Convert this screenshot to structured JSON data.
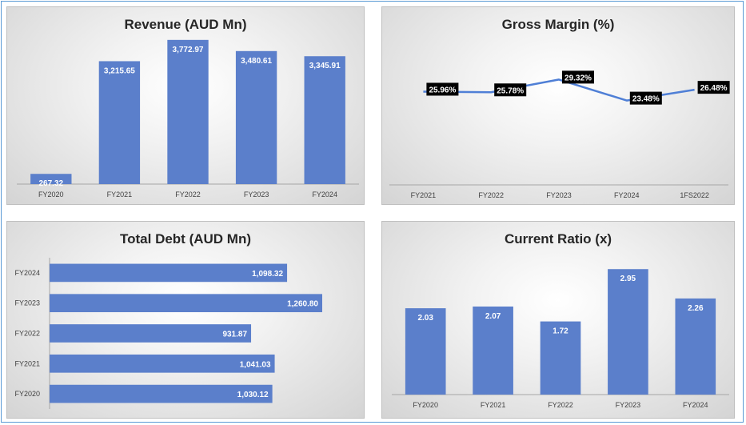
{
  "chart_data": [
    {
      "id": "revenue",
      "type": "bar",
      "title": "Revenue (AUD Mn)",
      "categories": [
        "FY2020",
        "FY2021",
        "FY2022",
        "FY2023",
        "FY2024"
      ],
      "values": [
        267.32,
        3215.65,
        3772.97,
        3480.61,
        3345.91
      ],
      "value_labels": [
        "267.32",
        "3,215.65",
        "3,772.97",
        "3,480.61",
        "3,345.91"
      ],
      "ylim": [
        0,
        4000
      ],
      "color": "#5b7fcb",
      "grid": false
    },
    {
      "id": "gross_margin",
      "type": "line",
      "title": "Gross Margin (%)",
      "categories": [
        "FY2021",
        "FY2022",
        "FY2023",
        "FY2024",
        "1FS2022"
      ],
      "values": [
        25.96,
        25.78,
        29.32,
        23.48,
        26.48
      ],
      "value_labels": [
        "25.96%",
        "25.78%",
        "29.32%",
        "23.48%",
        "26.48%"
      ],
      "ylim": [
        0,
        45
      ],
      "color": "#4f7fd6",
      "grid": false
    },
    {
      "id": "total_debt",
      "type": "bar",
      "orientation": "horizontal",
      "title": "Total Debt (AUD Mn)",
      "categories": [
        "FY2024",
        "FY2023",
        "FY2022",
        "FY2021",
        "FY2020"
      ],
      "values": [
        1098.32,
        1260.8,
        931.87,
        1041.03,
        1030.12
      ],
      "value_labels": [
        "1,098.32",
        "1,260.80",
        "931.87",
        "1,041.03",
        "1,030.12"
      ],
      "xlim": [
        0,
        1260.8
      ],
      "color": "#5b7fcb",
      "grid": false
    },
    {
      "id": "current_ratio",
      "type": "bar",
      "title": "Current Ratio (x)",
      "categories": [
        "FY2020",
        "FY2021",
        "FY2022",
        "FY2023",
        "FY2024"
      ],
      "values": [
        2.03,
        2.07,
        1.72,
        2.95,
        2.26
      ],
      "value_labels": [
        "2.03",
        "2.07",
        "1.72",
        "2.95",
        "2.26"
      ],
      "ylim": [
        0,
        3.5
      ],
      "color": "#5b7fcb",
      "grid": false
    }
  ]
}
